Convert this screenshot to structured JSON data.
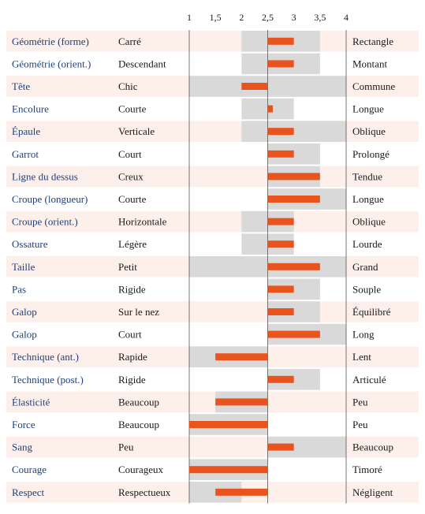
{
  "colors": {
    "row_band": "#fdf0ea",
    "range_fill": "#d9d9d9",
    "mean_bar": "#e8531e",
    "trait_text": "#1f3f7a",
    "axis_line": "#555555"
  },
  "chart_data": {
    "type": "bar",
    "orientation": "horizontal",
    "scale": {
      "min": 1,
      "max": 4,
      "midpoint": 2.5
    },
    "ticks": [
      {
        "value": 1,
        "label": "1"
      },
      {
        "value": 1.5,
        "label": "1,5"
      },
      {
        "value": 2,
        "label": "2"
      },
      {
        "value": 2.5,
        "label": "2,5"
      },
      {
        "value": 3,
        "label": "3"
      },
      {
        "value": 3.5,
        "label": "3,5"
      },
      {
        "value": 4,
        "label": "4"
      }
    ],
    "rows": [
      {
        "trait": "Géométrie (forme)",
        "low": "Carré",
        "high": "Rectangle",
        "range": [
          2,
          3.5
        ],
        "value": 3
      },
      {
        "trait": "Géométrie (orient.)",
        "low": "Descendant",
        "high": "Montant",
        "range": [
          2,
          3.5
        ],
        "value": 3
      },
      {
        "trait": "Tête",
        "low": "Chic",
        "high": "Commune",
        "range": [
          1,
          4
        ],
        "value": 2
      },
      {
        "trait": "Encolure",
        "low": "Courte",
        "high": "Longue",
        "range": [
          2,
          3
        ],
        "value": 2.6
      },
      {
        "trait": "Épaule",
        "low": "Verticale",
        "high": "Oblique",
        "range": [
          2,
          4
        ],
        "value": 3
      },
      {
        "trait": "Garrot",
        "low": "Court",
        "high": "Prolongé",
        "range": [
          2.5,
          3.5
        ],
        "value": 3
      },
      {
        "trait": "Ligne du dessus",
        "low": "Creux",
        "high": "Tendue",
        "range": [
          2.5,
          3.5
        ],
        "value": 3.5
      },
      {
        "trait": "Croupe (longueur)",
        "low": "Courte",
        "high": "Longue",
        "range": [
          2.5,
          4
        ],
        "value": 3.5
      },
      {
        "trait": "Croupe (orient.)",
        "low": "Horizontale",
        "high": "Oblique",
        "range": [
          2,
          3
        ],
        "value": 3
      },
      {
        "trait": "Ossature",
        "low": "Légère",
        "high": "Lourde",
        "range": [
          2,
          3
        ],
        "value": 3
      },
      {
        "trait": "Taille",
        "low": "Petit",
        "high": "Grand",
        "range": [
          1,
          4
        ],
        "value": 3.5
      },
      {
        "trait": "Pas",
        "low": "Rigide",
        "high": "Souple",
        "range": [
          2.5,
          3.5
        ],
        "value": 3
      },
      {
        "trait": "Galop",
        "low": "Sur le nez",
        "high": "Équilibré",
        "range": [
          2.5,
          3.5
        ],
        "value": 3
      },
      {
        "trait": "Galop",
        "low": "Court",
        "high": "Long",
        "range": [
          2.5,
          4
        ],
        "value": 3.5
      },
      {
        "trait": "Technique (ant.)",
        "low": "Rapide",
        "high": "Lent",
        "range": [
          1,
          2.5
        ],
        "value": 1.5
      },
      {
        "trait": "Technique (post.)",
        "low": "Rigide",
        "high": "Articulé",
        "range": [
          2.5,
          3.5
        ],
        "value": 3
      },
      {
        "trait": "Élasticité",
        "low": "Beaucoup",
        "high": "Peu",
        "range": [
          1.5,
          2.5
        ],
        "value": 1.5
      },
      {
        "trait": "Force",
        "low": "Beaucoup",
        "high": "Peu",
        "range": [
          1,
          2.5
        ],
        "value": 1
      },
      {
        "trait": "Sang",
        "low": "Peu",
        "high": "Beaucoup",
        "range": [
          2.5,
          4
        ],
        "value": 3
      },
      {
        "trait": "Courage",
        "low": "Courageux",
        "high": "Timoré",
        "range": [
          1,
          2.5
        ],
        "value": 1
      },
      {
        "trait": "Respect",
        "low": "Respectueux",
        "high": "Négligent",
        "range": [
          1,
          2
        ],
        "value": 1.5
      }
    ]
  }
}
